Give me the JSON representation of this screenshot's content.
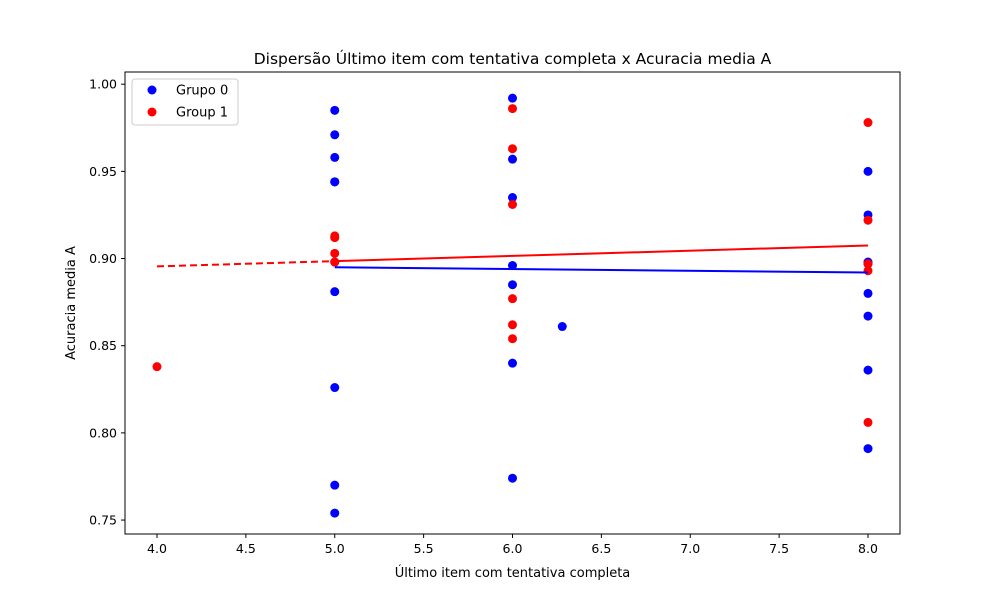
{
  "chart_data": {
    "type": "scatter",
    "title": "Dispersão Último item com tentativa completa x Acuracia media A",
    "xlabel": "Último item com tentativa completa",
    "ylabel": "Acuracia media A",
    "xlim": [
      3.82,
      8.18
    ],
    "ylim": [
      0.742,
      1.007
    ],
    "xticks": [
      "4.0",
      "4.5",
      "5.0",
      "5.5",
      "6.0",
      "6.5",
      "7.0",
      "7.5",
      "8.0"
    ],
    "yticks": [
      "0.75",
      "0.80",
      "0.85",
      "0.90",
      "0.95",
      "1.00"
    ],
    "grid": false,
    "legend_position": "top-left",
    "series": [
      {
        "name": "Grupo 0",
        "color": "#0000ff",
        "points": [
          [
            5,
            0.985
          ],
          [
            5,
            0.971
          ],
          [
            5,
            0.958
          ],
          [
            5,
            0.944
          ],
          [
            5,
            0.944
          ],
          [
            5,
            0.898
          ],
          [
            5,
            0.881
          ],
          [
            5,
            0.826
          ],
          [
            5,
            0.77
          ],
          [
            5,
            0.754
          ],
          [
            6,
            0.992
          ],
          [
            6,
            0.957
          ],
          [
            6,
            0.935
          ],
          [
            6,
            0.896
          ],
          [
            6,
            0.885
          ],
          [
            6,
            0.84
          ],
          [
            6,
            0.774
          ],
          [
            6.28,
            0.861
          ],
          [
            8,
            0.95
          ],
          [
            8,
            0.925
          ],
          [
            8,
            0.898
          ],
          [
            8,
            0.897
          ],
          [
            8,
            0.88
          ],
          [
            8,
            0.867
          ],
          [
            8,
            0.836
          ],
          [
            8,
            0.791
          ]
        ],
        "trend": {
          "style": "solid",
          "from": [
            5,
            0.895
          ],
          "to": [
            8,
            0.892
          ]
        }
      },
      {
        "name": "Group 1",
        "color": "#ff0000",
        "points": [
          [
            4,
            0.838
          ],
          [
            5,
            0.913
          ],
          [
            5,
            0.912
          ],
          [
            5,
            0.903
          ],
          [
            5,
            0.898
          ],
          [
            6,
            0.986
          ],
          [
            6,
            0.963
          ],
          [
            6,
            0.931
          ],
          [
            6,
            0.877
          ],
          [
            6,
            0.862
          ],
          [
            6,
            0.854
          ],
          [
            8,
            0.978
          ],
          [
            8,
            0.922
          ],
          [
            8,
            0.897
          ],
          [
            8,
            0.893
          ],
          [
            8,
            0.806
          ]
        ],
        "trend": {
          "style": "dashed-then-solid",
          "from": [
            4,
            0.8955
          ],
          "to": [
            8,
            0.9075
          ],
          "dash_until": 5
        }
      }
    ]
  }
}
